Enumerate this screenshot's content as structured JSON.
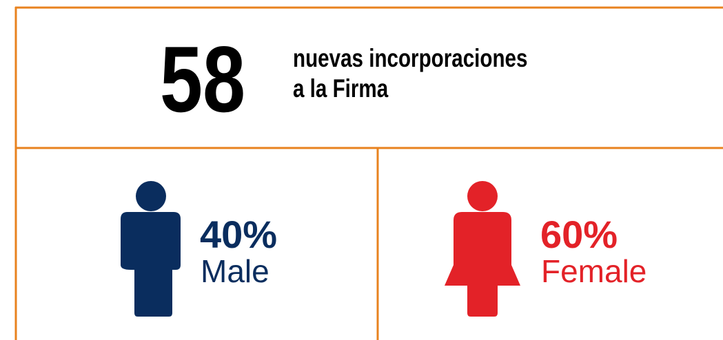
{
  "header": {
    "number": "58",
    "lines": [
      "nuevas incorporaciones",
      "a la Firma"
    ]
  },
  "stats": [
    {
      "percent": "40%",
      "label": "Male"
    },
    {
      "percent": "60%",
      "label": "Female"
    }
  ]
}
